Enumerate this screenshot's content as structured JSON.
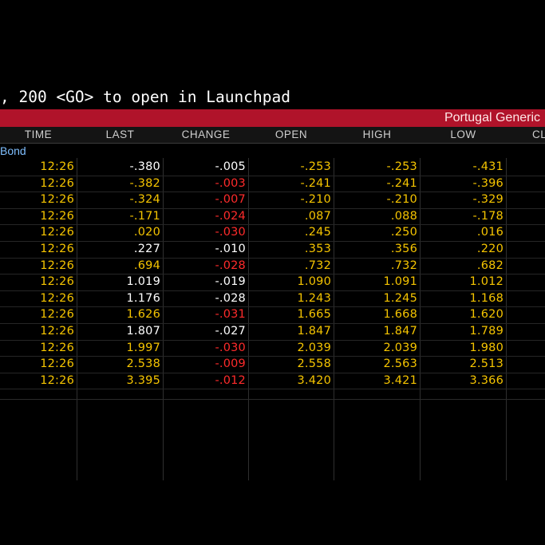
{
  "command_line": ", 200 <GO> to open in Launchpad",
  "title": "Portugal Generic",
  "columns": [
    "TIME",
    "LAST",
    "CHANGE",
    "OPEN",
    "HIGH",
    "LOW",
    "CL"
  ],
  "group_label": "Bond",
  "colors": {
    "background": "#000000",
    "title_bar": "#b0132a",
    "yellow": "#f5c400",
    "red": "#ff2b2b",
    "white": "#ffffff",
    "group_label": "#7fbfff"
  },
  "rows": [
    {
      "time": "12:26",
      "last": "-.380",
      "last_color": "white",
      "change": "-.005",
      "change_color": "white",
      "open": "-.253",
      "high": "-.253",
      "low": "-.431"
    },
    {
      "time": "12:26",
      "last": "-.382",
      "last_color": "yellow",
      "change": "-.003",
      "change_color": "red",
      "open": "-.241",
      "high": "-.241",
      "low": "-.396"
    },
    {
      "time": "12:26",
      "last": "-.324",
      "last_color": "yellow",
      "change": "-.007",
      "change_color": "red",
      "open": "-.210",
      "high": "-.210",
      "low": "-.329"
    },
    {
      "time": "12:26",
      "last": "-.171",
      "last_color": "yellow",
      "change": "-.024",
      "change_color": "red",
      "open": ".087",
      "high": ".088",
      "low": "-.178"
    },
    {
      "time": "12:26",
      "last": ".020",
      "last_color": "yellow",
      "change": "-.030",
      "change_color": "red",
      "open": ".245",
      "high": ".250",
      "low": ".016"
    },
    {
      "time": "12:26",
      "last": ".227",
      "last_color": "white",
      "change": "-.010",
      "change_color": "white",
      "open": ".353",
      "high": ".356",
      "low": ".220"
    },
    {
      "time": "12:26",
      "last": ".694",
      "last_color": "yellow",
      "change": "-.028",
      "change_color": "red",
      "open": ".732",
      "high": ".732",
      "low": ".682"
    },
    {
      "time": "12:26",
      "last": "1.019",
      "last_color": "white",
      "change": "-.019",
      "change_color": "white",
      "open": "1.090",
      "high": "1.091",
      "low": "1.012"
    },
    {
      "time": "12:26",
      "last": "1.176",
      "last_color": "white",
      "change": "-.028",
      "change_color": "white",
      "open": "1.243",
      "high": "1.245",
      "low": "1.168"
    },
    {
      "time": "12:26",
      "last": "1.626",
      "last_color": "yellow",
      "change": "-.031",
      "change_color": "red",
      "open": "1.665",
      "high": "1.668",
      "low": "1.620"
    },
    {
      "time": "12:26",
      "last": "1.807",
      "last_color": "white",
      "change": "-.027",
      "change_color": "white",
      "open": "1.847",
      "high": "1.847",
      "low": "1.789"
    },
    {
      "time": "12:26",
      "last": "1.997",
      "last_color": "yellow",
      "change": "-.030",
      "change_color": "red",
      "open": "2.039",
      "high": "2.039",
      "low": "1.980"
    },
    {
      "time": "12:26",
      "last": "2.538",
      "last_color": "yellow",
      "change": "-.009",
      "change_color": "red",
      "open": "2.558",
      "high": "2.563",
      "low": "2.513"
    },
    {
      "time": "12:26",
      "last": "3.395",
      "last_color": "yellow",
      "change": "-.012",
      "change_color": "red",
      "open": "3.420",
      "high": "3.421",
      "low": "3.366"
    }
  ]
}
